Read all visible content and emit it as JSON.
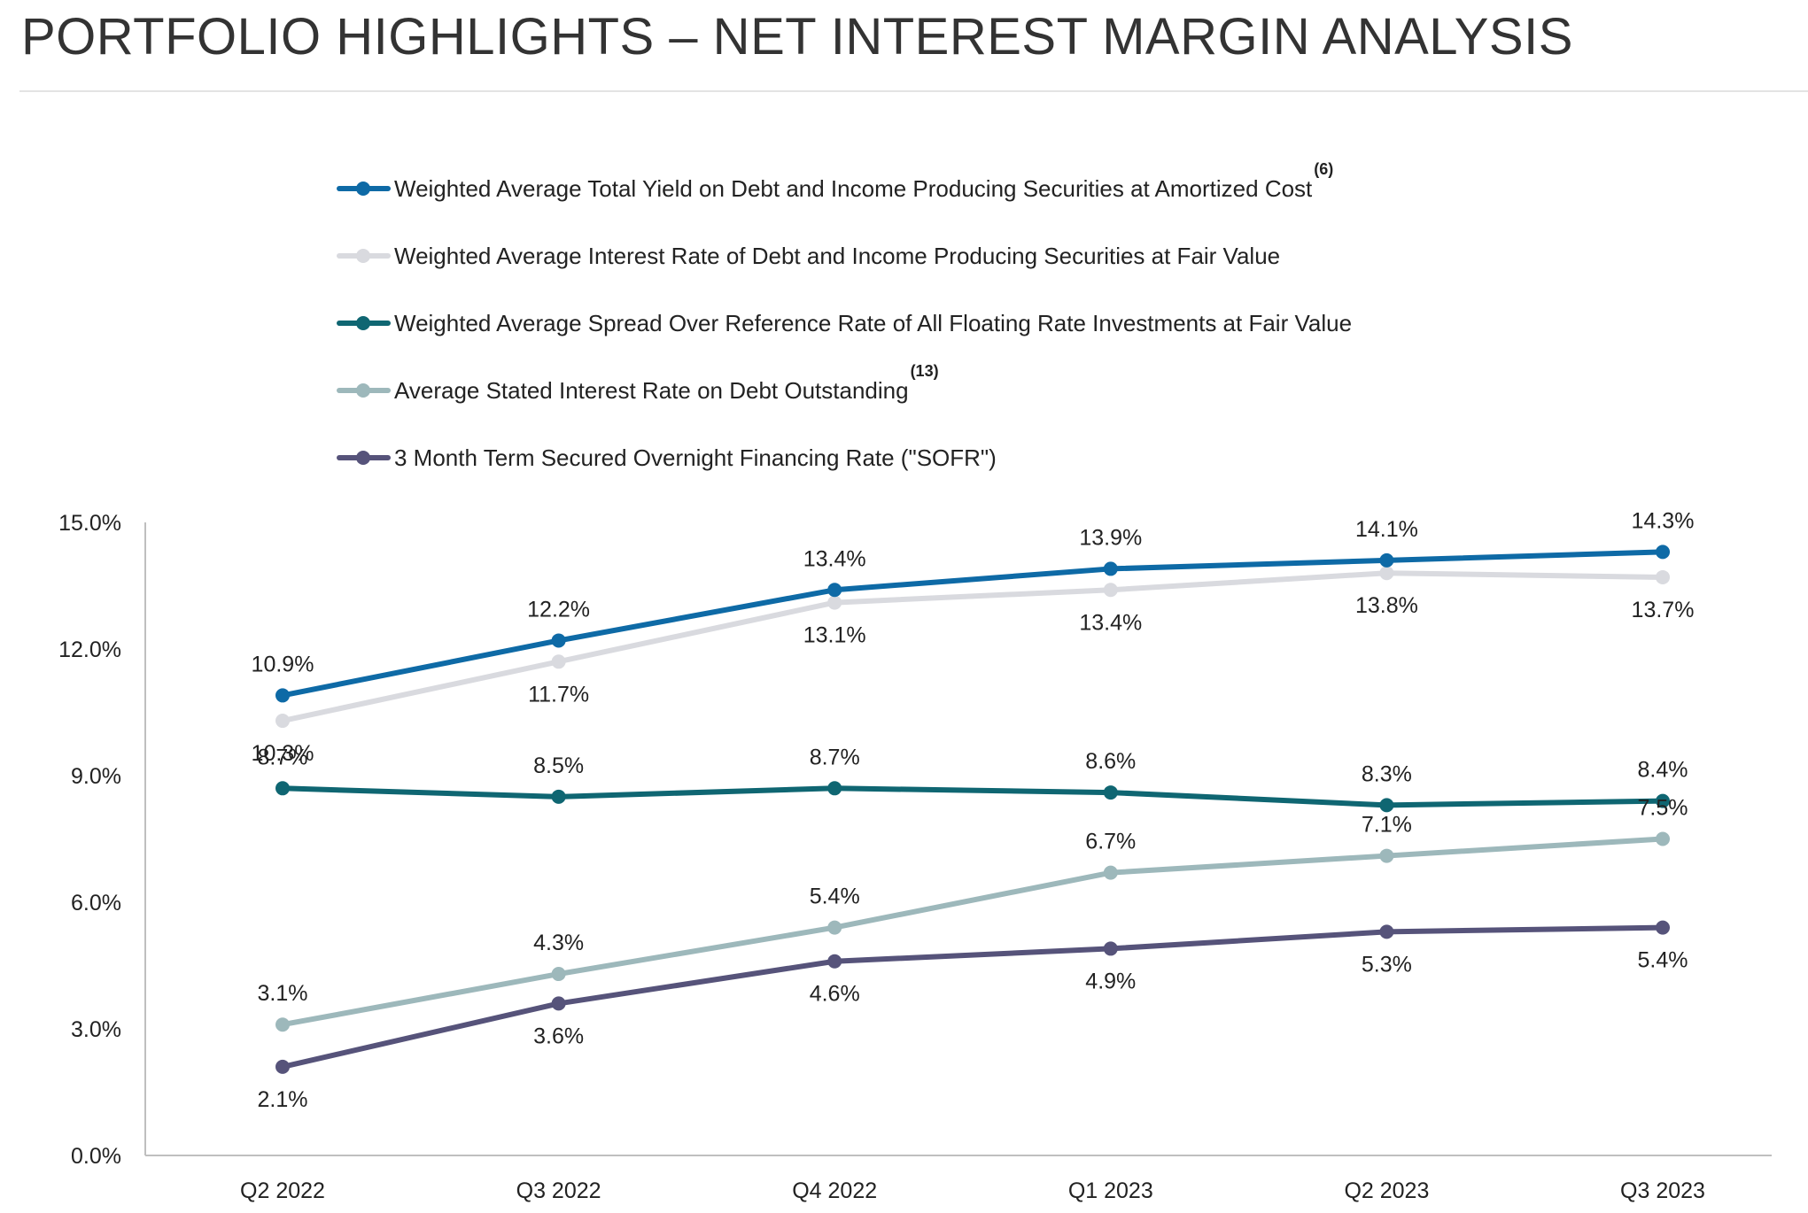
{
  "page": {
    "title": "PORTFOLIO HIGHLIGHTS – NET INTEREST MARGIN ANALYSIS"
  },
  "colors": {
    "text": "#222222",
    "axis": "#bfbfbf",
    "title_rule": "#e3e3e3"
  },
  "chart_data": {
    "type": "line",
    "title": "",
    "xlabel": "",
    "ylabel": "",
    "categories": [
      "Q2 2022",
      "Q3 2022",
      "Q4 2022",
      "Q1 2023",
      "Q2 2023",
      "Q3 2023"
    ],
    "ylim": [
      0,
      15
    ],
    "yticks": [
      0,
      3,
      6,
      9,
      12,
      15
    ],
    "ytick_labels": [
      "0.0%",
      "3.0%",
      "6.0%",
      "9.0%",
      "12.0%",
      "15.0%"
    ],
    "grid": false,
    "legend_position": "top",
    "series": [
      {
        "name": "Weighted Average Total Yield on Debt and Income Producing Securities at Amortized Cost",
        "footnote": "(6)",
        "color": "#0e6aa6",
        "values": [
          10.9,
          12.2,
          13.4,
          13.9,
          14.1,
          14.3
        ],
        "labels": [
          "10.9%",
          "12.2%",
          "13.4%",
          "13.9%",
          "14.1%",
          "14.3%"
        ],
        "label_position": "above"
      },
      {
        "name": "Weighted Average Interest Rate of Debt and Income Producing Securities at Fair Value",
        "footnote": "",
        "color": "#d9dadf",
        "values": [
          10.3,
          11.7,
          13.1,
          13.4,
          13.8,
          13.7
        ],
        "labels": [
          "10.3%",
          "11.7%",
          "13.1%",
          "13.4%",
          "13.8%",
          "13.7%"
        ],
        "label_position": "below"
      },
      {
        "name": "Weighted Average Spread Over Reference Rate of All Floating Rate Investments at Fair Value",
        "footnote": "",
        "color": "#0f6672",
        "values": [
          8.7,
          8.5,
          8.7,
          8.6,
          8.3,
          8.4
        ],
        "labels": [
          "8.7%",
          "8.5%",
          "8.7%",
          "8.6%",
          "8.3%",
          "8.4%"
        ],
        "label_position": "above"
      },
      {
        "name": "Average Stated Interest Rate on Debt Outstanding",
        "footnote": "(13)",
        "color": "#9db8bb",
        "values": [
          3.1,
          4.3,
          5.4,
          6.7,
          7.1,
          7.5
        ],
        "labels": [
          "3.1%",
          "4.3%",
          "5.4%",
          "6.7%",
          "7.1%",
          "7.5%"
        ],
        "label_position": "above"
      },
      {
        "name": "3 Month Term Secured Overnight Financing Rate (\"SOFR\")",
        "footnote": "",
        "color": "#56537a",
        "values": [
          2.1,
          3.6,
          4.6,
          4.9,
          5.3,
          5.4
        ],
        "labels": [
          "2.1%",
          "3.6%",
          "4.6%",
          "4.9%",
          "5.3%",
          "5.4%"
        ],
        "label_position": "below"
      }
    ]
  }
}
